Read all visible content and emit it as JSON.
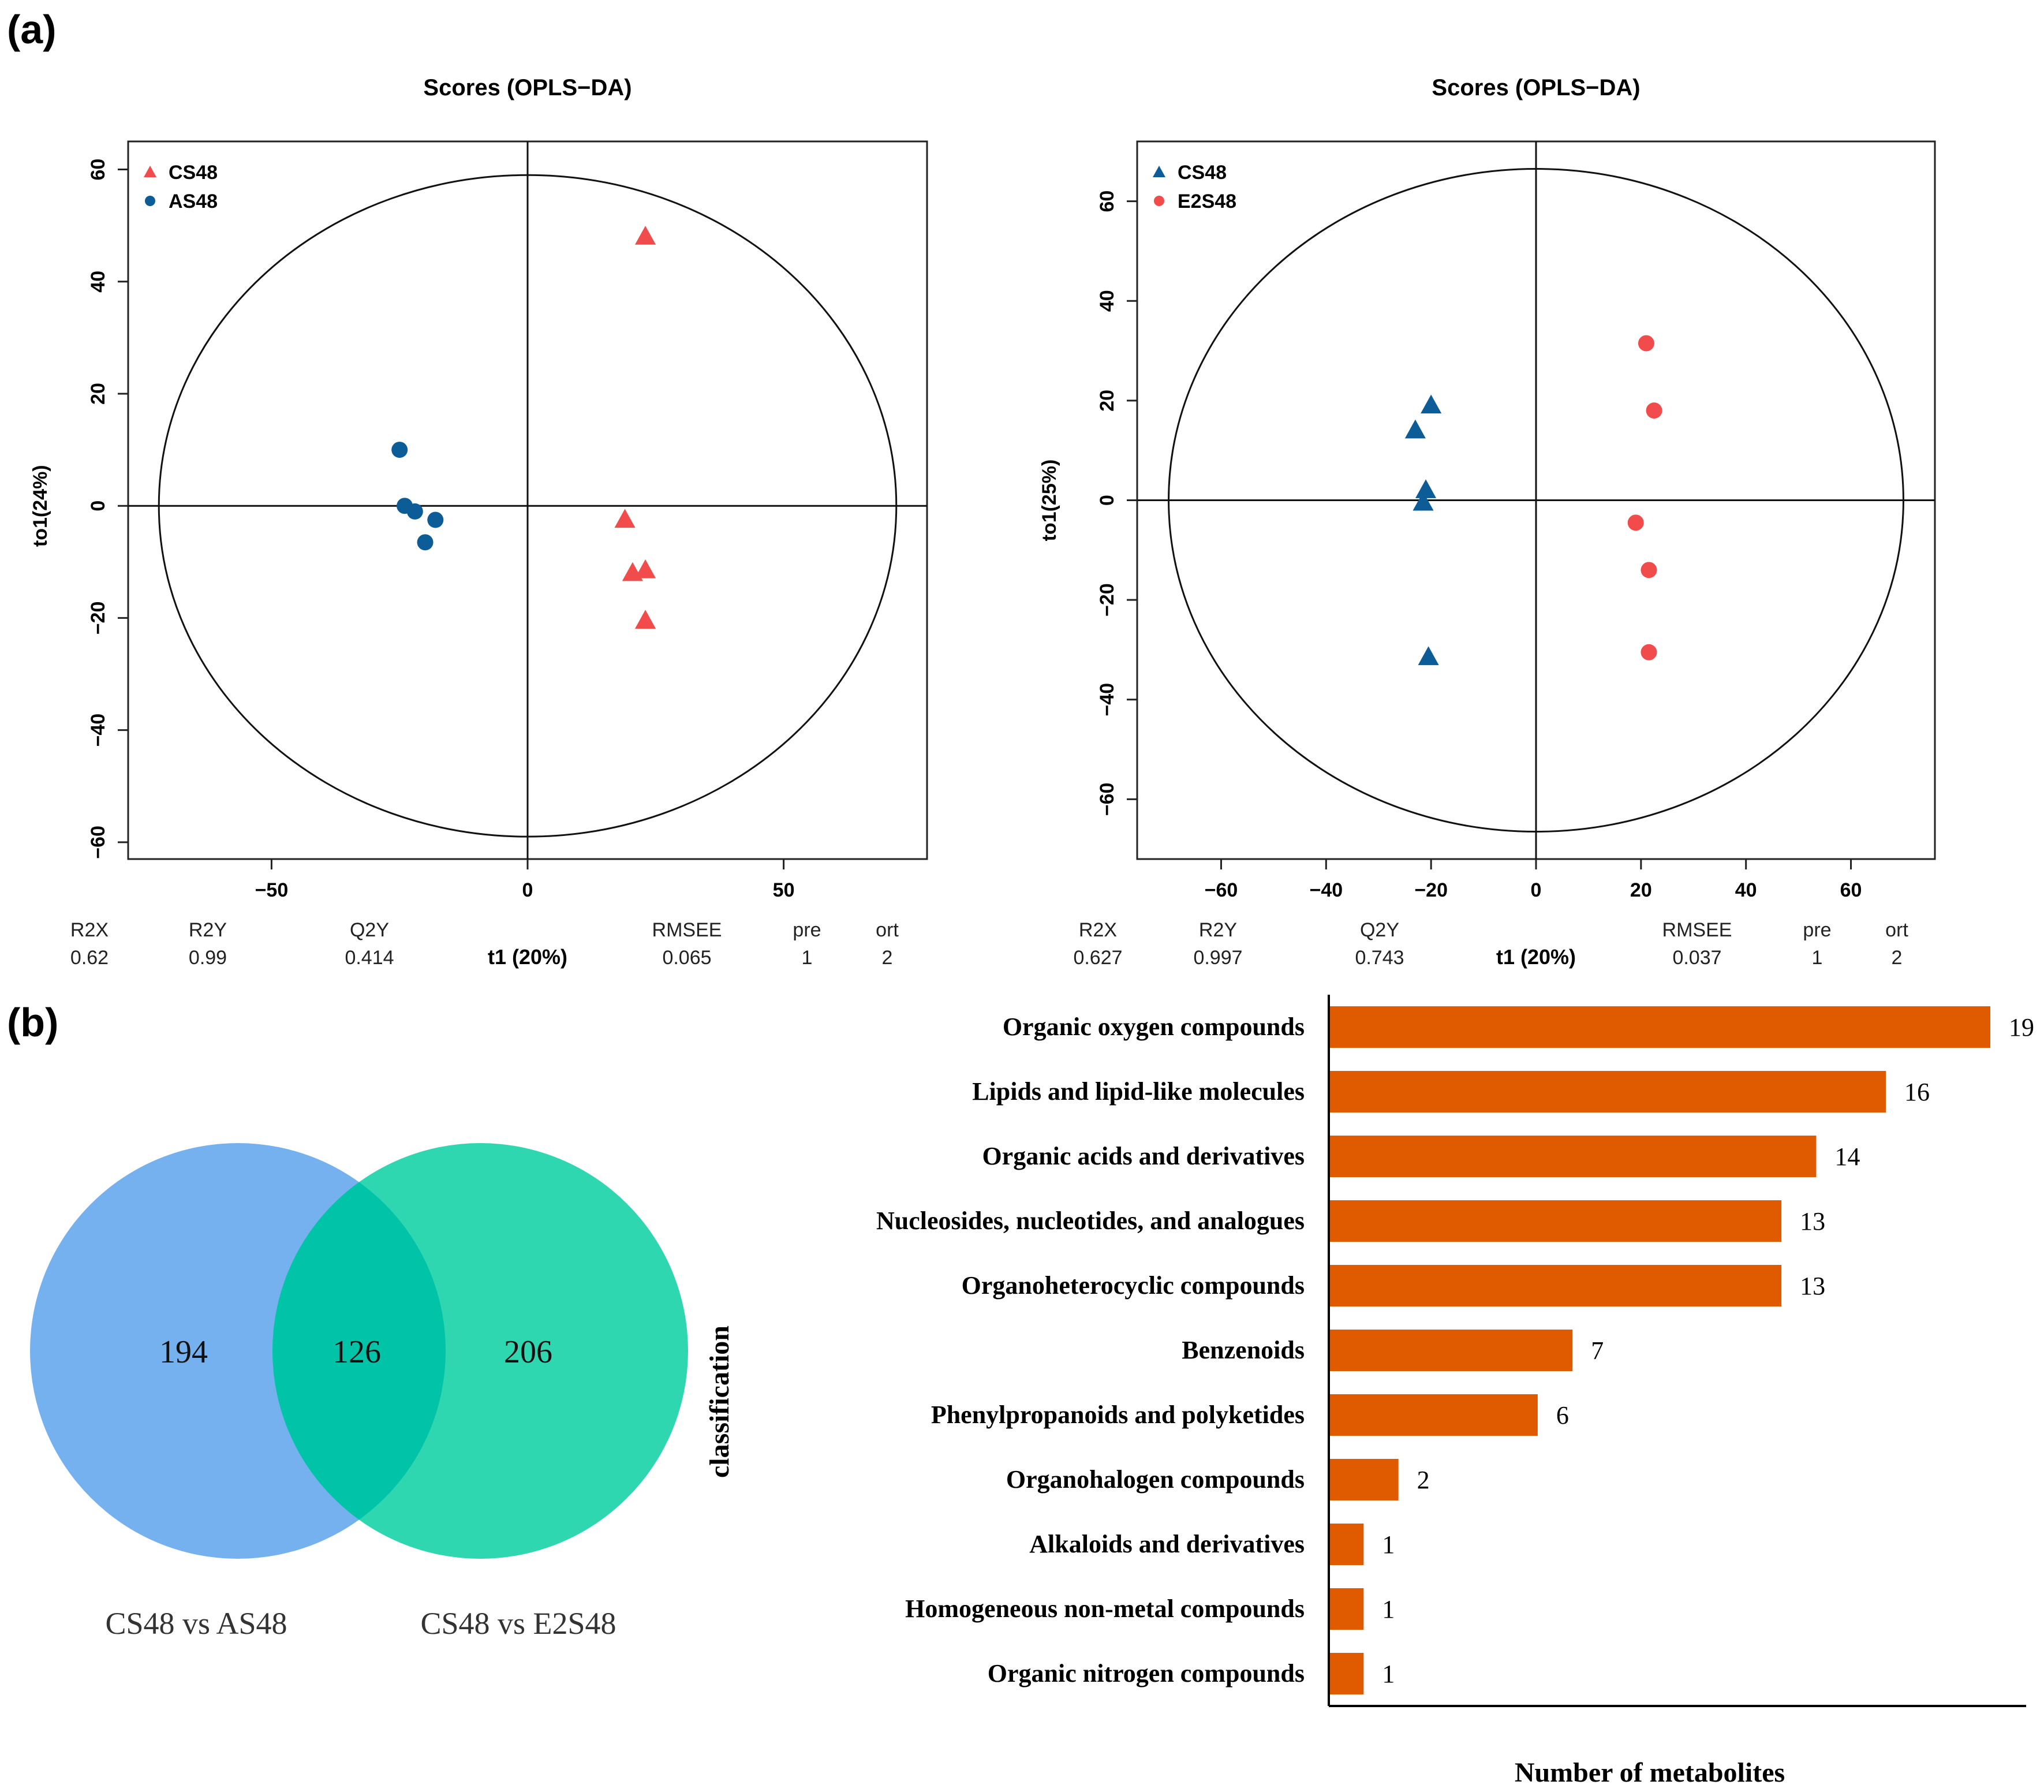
{
  "panel_labels": {
    "a": "(a)",
    "b": "(b)"
  },
  "chart_data": [
    {
      "type": "scatter",
      "title": "Scores (OPLS−DA)",
      "xlabel": "t1 (20%)",
      "ylabel": "to1(24%)",
      "xlim": [
        -78,
        78
      ],
      "ylim": [
        -63,
        65
      ],
      "xticks": [
        {
          "v": -50,
          "label": "−50"
        },
        {
          "v": 0,
          "label": "0"
        },
        {
          "v": 50,
          "label": "50"
        }
      ],
      "yticks": [
        {
          "v": 60,
          "label": "60"
        },
        {
          "v": 40,
          "label": "40"
        },
        {
          "v": 20,
          "label": "20"
        },
        {
          "v": 0,
          "label": "0"
        },
        {
          "v": -20,
          "label": "−20"
        },
        {
          "v": -40,
          "label": "−40"
        },
        {
          "v": -60,
          "label": "−60"
        }
      ],
      "ellipse": {
        "rx": 72,
        "ry": 59
      },
      "legend_position": "top-left",
      "series": [
        {
          "name": "CS48",
          "marker": "triangle",
          "color": "#f24b4b",
          "points": [
            [
              23,
              48
            ],
            [
              19,
              -2.5
            ],
            [
              20.5,
              -12
            ],
            [
              23,
              -11.5
            ],
            [
              23,
              -20.5
            ]
          ]
        },
        {
          "name": "AS48",
          "marker": "circle",
          "color": "#0b5c97",
          "points": [
            [
              -25,
              10
            ],
            [
              -24,
              0
            ],
            [
              -22,
              -1
            ],
            [
              -18,
              -2.5
            ],
            [
              -20,
              -6.5
            ]
          ]
        }
      ],
      "stats": {
        "labels": [
          "R2X",
          "R2Y",
          "Q2Y",
          "RMSEE",
          "pre",
          "ort"
        ],
        "values": [
          "0.62",
          "0.99",
          "0.414",
          "0.065",
          "1",
          "2"
        ]
      }
    },
    {
      "type": "scatter",
      "title": "Scores (OPLS−DA)",
      "xlabel": "t1 (20%)",
      "ylabel": "to1(25%)",
      "xlim": [
        -76,
        76
      ],
      "ylim": [
        -72,
        72
      ],
      "xticks": [
        {
          "v": -60,
          "label": "−60"
        },
        {
          "v": -40,
          "label": "−40"
        },
        {
          "v": -20,
          "label": "−20"
        },
        {
          "v": 0,
          "label": "0"
        },
        {
          "v": 20,
          "label": "20"
        },
        {
          "v": 40,
          "label": "40"
        },
        {
          "v": 60,
          "label": "60"
        }
      ],
      "yticks": [
        {
          "v": 60,
          "label": "60"
        },
        {
          "v": 40,
          "label": "40"
        },
        {
          "v": 20,
          "label": "20"
        },
        {
          "v": 0,
          "label": "0"
        },
        {
          "v": -20,
          "label": "−20"
        },
        {
          "v": -40,
          "label": "−40"
        },
        {
          "v": -60,
          "label": "−60"
        }
      ],
      "ellipse": {
        "rx": 70,
        "ry": 66.5
      },
      "legend_position": "top-left",
      "series": [
        {
          "name": "CS48",
          "marker": "triangle",
          "color": "#0b5c97",
          "points": [
            [
              -20,
              19
            ],
            [
              -23,
              14
            ],
            [
              -21,
              2
            ],
            [
              -21.5,
              -0.5
            ],
            [
              -20.5,
              -31.5
            ]
          ]
        },
        {
          "name": "E2S48",
          "marker": "circle",
          "color": "#f24b4b",
          "points": [
            [
              21,
              31.5
            ],
            [
              22.5,
              18
            ],
            [
              19,
              -4.5
            ],
            [
              21.5,
              -14
            ],
            [
              21.5,
              -30.5
            ]
          ]
        }
      ],
      "stats": {
        "labels": [
          "R2X",
          "R2Y",
          "Q2Y",
          "RMSEE",
          "pre",
          "ort"
        ],
        "values": [
          "0.627",
          "0.997",
          "0.743",
          "0.037",
          "1",
          "2"
        ]
      }
    },
    {
      "type": "venn",
      "sets": [
        {
          "name": "CS48 vs AS48",
          "only": 194,
          "color": "#74b1ee"
        },
        {
          "name": "CS48 vs E2S48",
          "only": 206,
          "color": "#2ed7b0"
        }
      ],
      "intersection": 126,
      "intersection_color": "#00c3a8"
    },
    {
      "type": "bar",
      "orientation": "horizontal",
      "ylabel": "classification",
      "xlabel": "Number of metabolites",
      "xlim": [
        0,
        19
      ],
      "color": "#e05a00",
      "categories": [
        "Organic oxygen compounds",
        "Lipids and lipid-like molecules",
        "Organic acids and derivatives",
        "Nucleosides, nucleotides, and analogues",
        "Organoheterocyclic compounds",
        "Benzenoids",
        "Phenylpropanoids and polyketides",
        "Organohalogen compounds",
        "Alkaloids and derivatives",
        "Homogeneous non-metal compounds",
        "Organic nitrogen compounds"
      ],
      "values": [
        19,
        16,
        14,
        13,
        13,
        7,
        6,
        2,
        1,
        1,
        1
      ]
    }
  ]
}
